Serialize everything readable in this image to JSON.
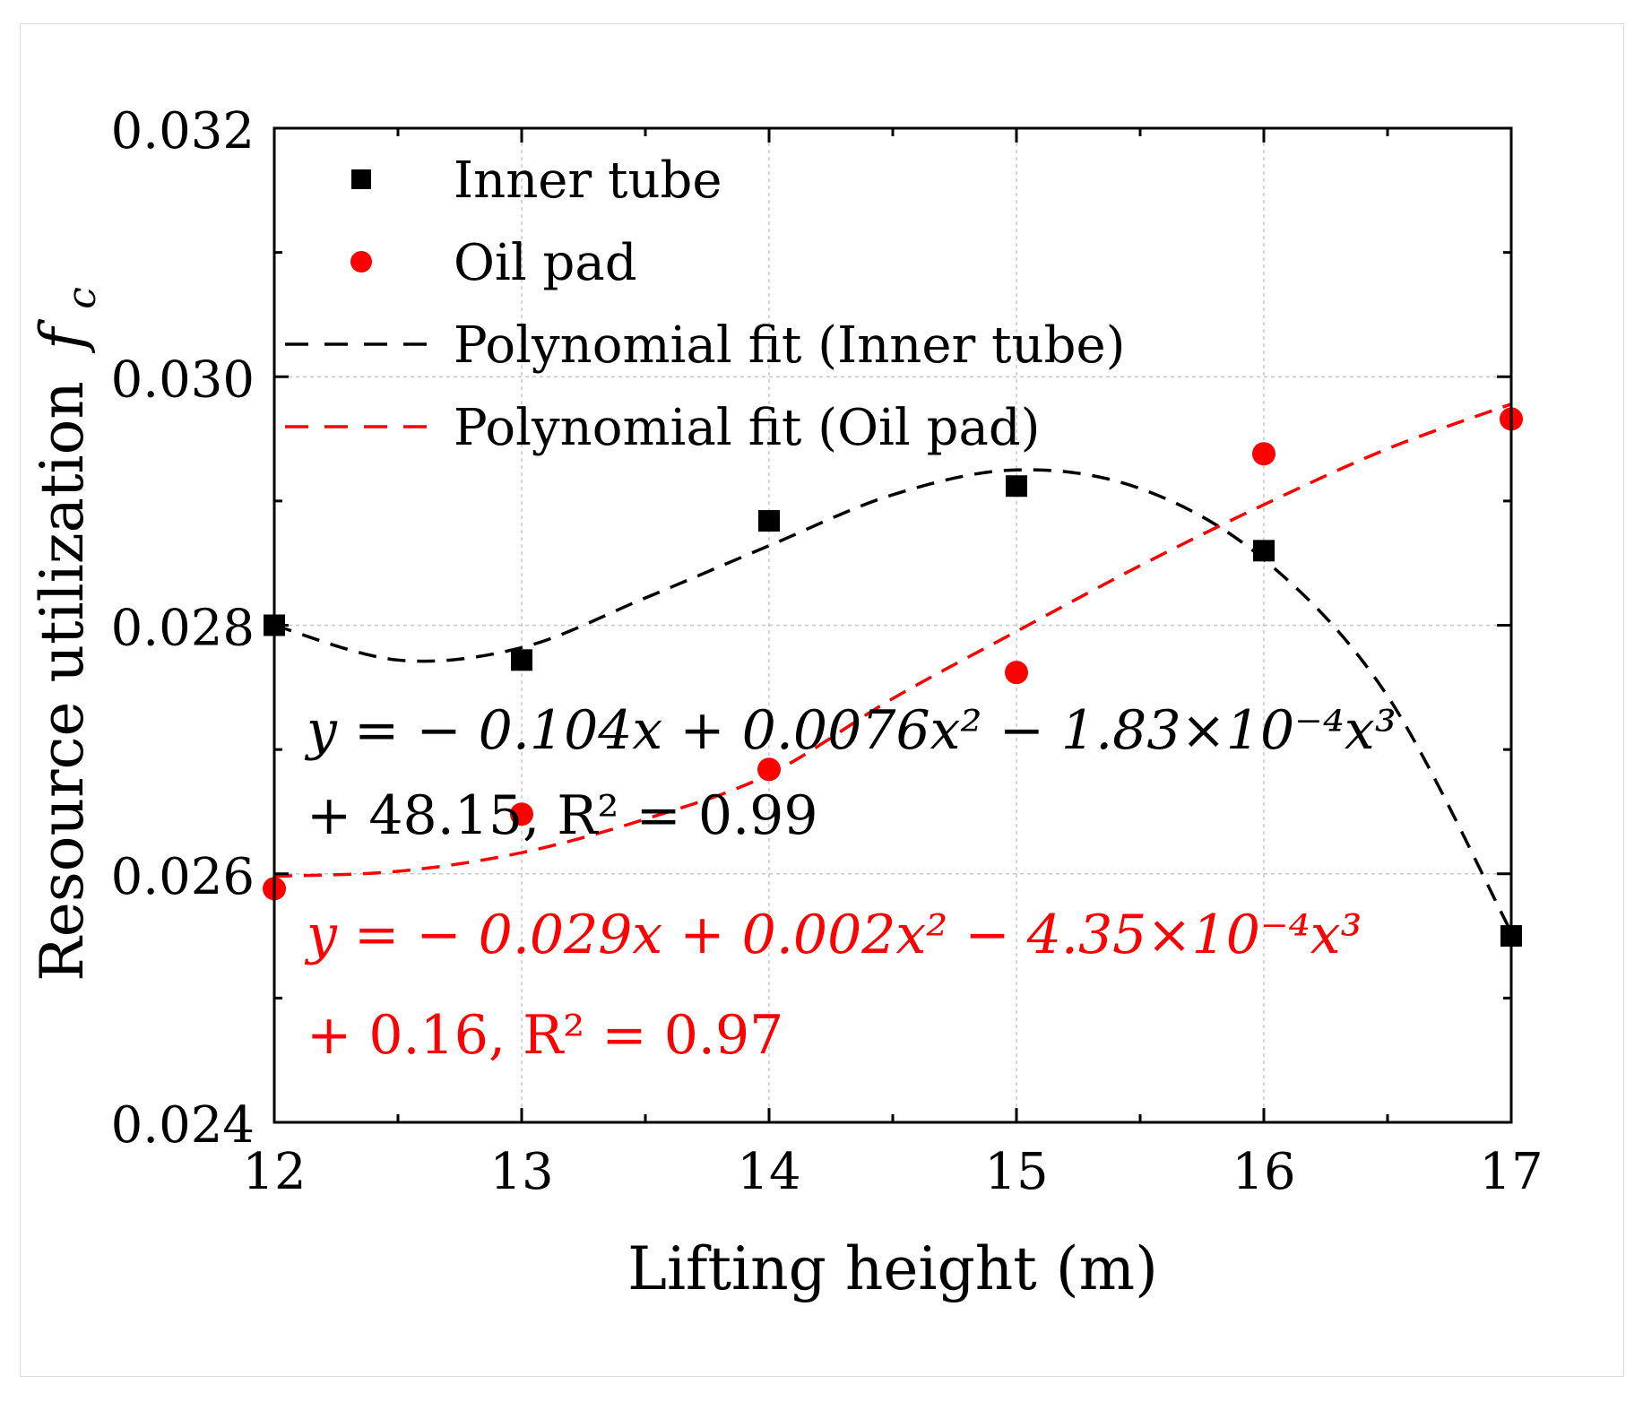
{
  "chart_data": {
    "type": "scatter",
    "xlabel": "Lifting height (m)",
    "ylabel": "Resource utilization",
    "ylabel_symbol": "f",
    "ylabel_subscript": "c",
    "xlim": [
      12,
      17
    ],
    "ylim": [
      0.024,
      0.032
    ],
    "xticks": [
      "12",
      "13",
      "14",
      "15",
      "16",
      "17"
    ],
    "yticks": [
      "0.024",
      "0.026",
      "0.028",
      "0.030",
      "0.032"
    ],
    "grid": true,
    "legend_position": "top-left",
    "series": [
      {
        "name": "Inner tube",
        "marker": "square",
        "color": "#000000",
        "x": [
          12,
          13,
          14,
          15,
          16,
          17
        ],
        "y": [
          0.028,
          0.02772,
          0.02884,
          0.02912,
          0.0286,
          0.0255
        ]
      },
      {
        "name": "Oil pad",
        "marker": "circle",
        "color": "#ff0000",
        "x": [
          12,
          13,
          14,
          15,
          16,
          17
        ],
        "y": [
          0.02588,
          0.02648,
          0.02684,
          0.02762,
          0.02938,
          0.02966
        ]
      }
    ],
    "fits": [
      {
        "name": "Polynomial fit (Inner tube)",
        "color": "#000000",
        "style": "dashed",
        "x": [
          12,
          12.5,
          13,
          13.5,
          14,
          14.5,
          15,
          15.5,
          16,
          16.5,
          17
        ],
        "y": [
          0.028,
          0.02772,
          0.02782,
          0.02822,
          0.02864,
          0.02905,
          0.02925,
          0.0291,
          0.02853,
          0.02743,
          0.02553
        ]
      },
      {
        "name": "Polynomial fit (Oil pad)",
        "color": "#ff0000",
        "style": "dashed",
        "x": [
          12,
          12.5,
          13,
          13.5,
          14,
          14.5,
          15,
          15.5,
          16,
          16.5,
          17
        ],
        "y": [
          0.02598,
          0.02602,
          0.02617,
          0.02644,
          0.0268,
          0.02741,
          0.02795,
          0.02848,
          0.02897,
          0.02942,
          0.02978
        ]
      }
    ],
    "annotations": [
      {
        "color": "#000000",
        "line1": "y = − 0.104x + 0.0076x² − 1.83×10⁻⁴x³",
        "line2": "+ 48.15, R² = 0.99"
      },
      {
        "color": "#ff0000",
        "line1": "y = − 0.029x + 0.002x² − 4.35×10⁻⁴x³",
        "line2": "+ 0.16, R² = 0.97"
      }
    ]
  }
}
